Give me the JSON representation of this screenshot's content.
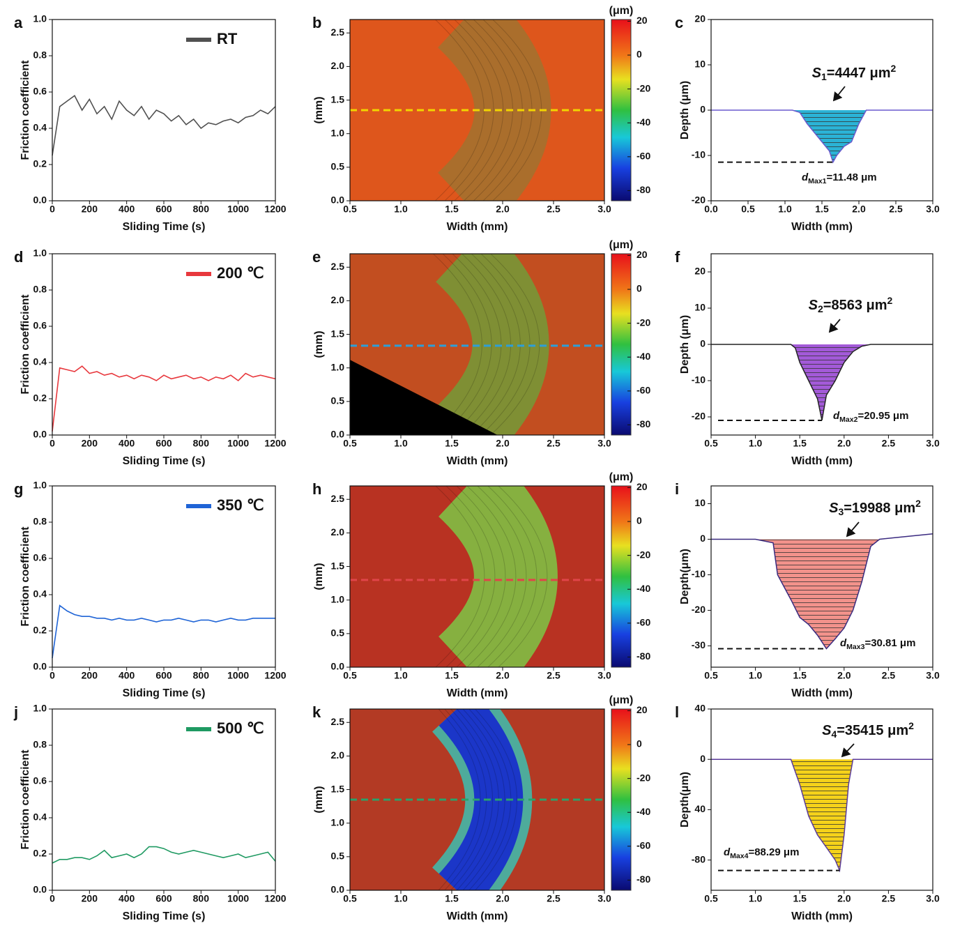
{
  "chart_data": [
    {
      "panel": "a",
      "type": "line",
      "x": [
        0,
        40,
        80,
        120,
        160,
        200,
        240,
        280,
        320,
        360,
        400,
        440,
        480,
        520,
        560,
        600,
        640,
        680,
        720,
        760,
        800,
        840,
        880,
        920,
        960,
        1000,
        1040,
        1080,
        1120,
        1160,
        1200
      ],
      "series": [
        {
          "name": "RT",
          "color": "#505050",
          "values": [
            0.25,
            0.52,
            0.55,
            0.58,
            0.5,
            0.56,
            0.48,
            0.52,
            0.45,
            0.55,
            0.5,
            0.47,
            0.52,
            0.45,
            0.5,
            0.48,
            0.44,
            0.47,
            0.42,
            0.45,
            0.4,
            0.43,
            0.42,
            0.44,
            0.45,
            0.43,
            0.46,
            0.47,
            0.5,
            0.48,
            0.52
          ]
        }
      ],
      "xlabel": "Sliding Time (s)",
      "ylabel": "Friction coefficient",
      "xlim": [
        0,
        1200
      ],
      "ylim": [
        0,
        1
      ],
      "xticks": [
        0,
        200,
        400,
        600,
        800,
        1000,
        1200
      ],
      "yticks": [
        {
          "value": 0,
          "label": "0.0"
        },
        0.2,
        0.4,
        0.6,
        0.8,
        {
          "value": 1,
          "label": "1.0"
        }
      ]
    },
    {
      "panel": "b",
      "type": "map",
      "xlabel": "Width (mm)",
      "ylabel": "(mm)",
      "colorbar_label": "(μm)",
      "xlim": [
        0.5,
        3
      ],
      "ylim": [
        0,
        2.7
      ],
      "xticks": [
        0.5,
        {
          "value": 1,
          "label": "1.0"
        },
        1.5,
        {
          "value": 2,
          "label": "2.0"
        },
        2.5,
        {
          "value": 3,
          "label": "3.0"
        }
      ],
      "yticks": [
        {
          "value": 0,
          "label": "0.0"
        },
        0.5,
        {
          "value": 1,
          "label": "1.0"
        },
        1.5,
        {
          "value": 2,
          "label": "2.0"
        },
        2.5
      ],
      "clim": [
        -86,
        21
      ],
      "cticks": [
        20,
        0,
        -20,
        -40,
        -60,
        -80
      ],
      "section_y": 1.35,
      "section_color": "#f2d500"
    },
    {
      "panel": "c",
      "type": "profile",
      "x": [
        0,
        0.2,
        0.4,
        0.6,
        0.8,
        1.0,
        1.1,
        1.2,
        1.3,
        1.4,
        1.5,
        1.6,
        1.65,
        1.7,
        1.8,
        1.9,
        2.0,
        2.1,
        2.2,
        2.4,
        2.6,
        2.8,
        3.0
      ],
      "values": [
        0,
        0,
        0,
        0,
        0,
        0,
        0,
        -0.5,
        -3,
        -5,
        -7,
        -9,
        -11.48,
        -10,
        -8,
        -7,
        -3,
        0,
        0,
        0,
        0,
        0,
        0
      ],
      "color": "#6a5acd",
      "fill": "#2bb3d6",
      "area_label": [
        "S",
        "1",
        "=4447 μm",
        "2"
      ],
      "depth_label": [
        "d",
        "Max1",
        "=11.48 μm"
      ],
      "xlabel": "Width (mm)",
      "ylabel": "Depth (μm)",
      "xlim": [
        0,
        3
      ],
      "ylim": [
        -20,
        20
      ],
      "xticks": [
        {
          "value": 0,
          "label": "0.0"
        },
        0.5,
        {
          "value": 1,
          "label": "1.0"
        },
        1.5,
        {
          "value": 2,
          "label": "2.0"
        },
        2.5,
        {
          "value": 3,
          "label": "3.0"
        }
      ],
      "yticks": [
        -20,
        -10,
        0,
        10,
        20
      ]
    },
    {
      "panel": "d",
      "type": "line",
      "x": [
        0,
        40,
        80,
        120,
        160,
        200,
        240,
        280,
        320,
        360,
        400,
        440,
        480,
        520,
        560,
        600,
        640,
        680,
        720,
        760,
        800,
        840,
        880,
        920,
        960,
        1000,
        1040,
        1080,
        1120,
        1160,
        1200
      ],
      "series": [
        {
          "name": "200 ℃",
          "color": "#e8383d",
          "values": [
            0.02,
            0.37,
            0.36,
            0.35,
            0.38,
            0.34,
            0.35,
            0.33,
            0.34,
            0.32,
            0.33,
            0.31,
            0.33,
            0.32,
            0.3,
            0.33,
            0.31,
            0.32,
            0.33,
            0.31,
            0.32,
            0.3,
            0.32,
            0.31,
            0.33,
            0.3,
            0.34,
            0.32,
            0.33,
            0.32,
            0.31
          ]
        }
      ],
      "xlabel": "Sliding Time (s)",
      "ylabel": "Friction coefficient",
      "xlim": [
        0,
        1200
      ],
      "ylim": [
        0,
        1
      ],
      "xticks": [
        0,
        200,
        400,
        600,
        800,
        1000,
        1200
      ],
      "yticks": [
        {
          "value": 0,
          "label": "0.0"
        },
        0.2,
        0.4,
        0.6,
        0.8,
        {
          "value": 1,
          "label": "1.0"
        }
      ]
    },
    {
      "panel": "e",
      "type": "map",
      "xlabel": "Width (mm)",
      "ylabel": "(mm)",
      "colorbar_label": "(μm)",
      "xlim": [
        0.5,
        3
      ],
      "ylim": [
        0,
        2.7
      ],
      "xticks": [
        0.5,
        {
          "value": 1,
          "label": "1.0"
        },
        1.5,
        {
          "value": 2,
          "label": "2.0"
        },
        2.5,
        {
          "value": 3,
          "label": "3.0"
        }
      ],
      "yticks": [
        {
          "value": 0,
          "label": "0.0"
        },
        0.5,
        {
          "value": 1,
          "label": "1.0"
        },
        1.5,
        {
          "value": 2,
          "label": "2.0"
        },
        2.5
      ],
      "clim": [
        -86,
        21
      ],
      "cticks": [
        20,
        0,
        -20,
        -40,
        -60,
        -80
      ],
      "section_y": 1.33,
      "section_color": "#2d9fd8"
    },
    {
      "panel": "f",
      "type": "profile",
      "x": [
        0.5,
        0.8,
        1.1,
        1.4,
        1.45,
        1.5,
        1.6,
        1.7,
        1.75,
        1.8,
        1.9,
        2.0,
        2.1,
        2.2,
        2.3,
        2.6,
        3.0
      ],
      "values": [
        0,
        0,
        0,
        0,
        -1,
        -5,
        -10,
        -15,
        -20.95,
        -14,
        -10,
        -5,
        -2,
        -0.5,
        0,
        0,
        0
      ],
      "color": "#222222",
      "fill": "#a35ad8",
      "area_label": [
        "S",
        "2",
        "=8563 μm",
        "2"
      ],
      "depth_label": [
        "d",
        "Max2",
        "=20.95 μm"
      ],
      "xlabel": "Width (mm)",
      "ylabel": "Depth (μm)",
      "xlim": [
        0.5,
        3
      ],
      "ylim": [
        -25,
        25
      ],
      "xticks": [
        0.5,
        {
          "value": 1,
          "label": "1.0"
        },
        1.5,
        {
          "value": 2,
          "label": "2.0"
        },
        2.5,
        {
          "value": 3,
          "label": "3.0"
        }
      ],
      "yticks": [
        -20,
        -10,
        0,
        10,
        20
      ]
    },
    {
      "panel": "g",
      "type": "line",
      "x": [
        0,
        40,
        80,
        120,
        160,
        200,
        240,
        280,
        320,
        360,
        400,
        440,
        480,
        520,
        560,
        600,
        640,
        680,
        720,
        760,
        800,
        840,
        880,
        920,
        960,
        1000,
        1040,
        1080,
        1120,
        1160,
        1200
      ],
      "series": [
        {
          "name": "350 ℃",
          "color": "#1f64d6",
          "values": [
            0.05,
            0.34,
            0.31,
            0.29,
            0.28,
            0.28,
            0.27,
            0.27,
            0.26,
            0.27,
            0.26,
            0.26,
            0.27,
            0.26,
            0.25,
            0.26,
            0.26,
            0.27,
            0.26,
            0.25,
            0.26,
            0.26,
            0.25,
            0.26,
            0.27,
            0.26,
            0.26,
            0.27,
            0.27,
            0.27,
            0.27
          ]
        }
      ],
      "xlabel": "Sliding Time (s)",
      "ylabel": "Friction coefficient",
      "xlim": [
        0,
        1200
      ],
      "ylim": [
        0,
        1
      ],
      "xticks": [
        0,
        200,
        400,
        600,
        800,
        1000,
        1200
      ],
      "yticks": [
        {
          "value": 0,
          "label": "0.0"
        },
        0.2,
        0.4,
        0.6,
        0.8,
        {
          "value": 1,
          "label": "1.0"
        }
      ]
    },
    {
      "panel": "h",
      "type": "map",
      "xlabel": "Width (mm)",
      "ylabel": "(mm)",
      "colorbar_label": "(μm)",
      "xlim": [
        0.5,
        3
      ],
      "ylim": [
        0,
        2.7
      ],
      "xticks": [
        0.5,
        {
          "value": 1,
          "label": "1.0"
        },
        1.5,
        {
          "value": 2,
          "label": "2.0"
        },
        2.5,
        {
          "value": 3,
          "label": "3.0"
        }
      ],
      "yticks": [
        {
          "value": 0,
          "label": "0.0"
        },
        0.5,
        {
          "value": 1,
          "label": "1.0"
        },
        1.5,
        {
          "value": 2,
          "label": "2.0"
        },
        2.5
      ],
      "clim": [
        -86,
        21
      ],
      "cticks": [
        20,
        0,
        -20,
        -40,
        -60,
        -80
      ],
      "section_y": 1.3,
      "section_color": "#e0454a"
    },
    {
      "panel": "i",
      "type": "profile",
      "x": [
        0.5,
        1.0,
        1.2,
        1.25,
        1.4,
        1.5,
        1.6,
        1.7,
        1.8,
        1.9,
        2.0,
        2.1,
        2.2,
        2.3,
        2.4,
        2.6,
        3.0
      ],
      "values": [
        0,
        0,
        -1,
        -10,
        -17,
        -22,
        -24,
        -27,
        -30.81,
        -28,
        -25,
        -20,
        -12,
        -2,
        0,
        0.5,
        1.5
      ],
      "color": "#3a2a80",
      "fill": "#f2928b",
      "area_label": [
        "S",
        "3",
        "=19988 μm",
        "2"
      ],
      "depth_label": [
        "d",
        "Max3",
        "=30.81 μm"
      ],
      "xlabel": "Width (mm)",
      "ylabel": "Depth(μm)",
      "xlim": [
        0.5,
        3
      ],
      "ylim": [
        -36,
        15
      ],
      "xticks": [
        0.5,
        {
          "value": 1,
          "label": "1.0"
        },
        1.5,
        {
          "value": 2,
          "label": "2.0"
        },
        2.5,
        {
          "value": 3,
          "label": "3.0"
        }
      ],
      "yticks": [
        -30,
        -20,
        -10,
        0,
        10
      ]
    },
    {
      "panel": "j",
      "type": "line",
      "x": [
        0,
        40,
        80,
        120,
        160,
        200,
        240,
        280,
        320,
        360,
        400,
        440,
        480,
        520,
        560,
        600,
        640,
        680,
        720,
        760,
        800,
        840,
        880,
        920,
        960,
        1000,
        1040,
        1080,
        1120,
        1160,
        1200
      ],
      "series": [
        {
          "name": "500 ℃",
          "color": "#1f9a62",
          "values": [
            0.15,
            0.17,
            0.17,
            0.18,
            0.18,
            0.17,
            0.19,
            0.22,
            0.18,
            0.19,
            0.2,
            0.18,
            0.2,
            0.24,
            0.24,
            0.23,
            0.21,
            0.2,
            0.21,
            0.22,
            0.21,
            0.2,
            0.19,
            0.18,
            0.19,
            0.2,
            0.18,
            0.19,
            0.2,
            0.21,
            0.16
          ]
        }
      ],
      "xlabel": "Sliding Time (s)",
      "ylabel": "Friction coefficient",
      "xlim": [
        0,
        1200
      ],
      "ylim": [
        0,
        1
      ],
      "xticks": [
        0,
        200,
        400,
        600,
        800,
        1000,
        1200
      ],
      "yticks": [
        {
          "value": 0,
          "label": "0.0"
        },
        0.2,
        0.4,
        0.6,
        0.8,
        {
          "value": 1,
          "label": "1.0"
        }
      ]
    },
    {
      "panel": "k",
      "type": "map",
      "xlabel": "Width (mm)",
      "ylabel": "(mm)",
      "colorbar_label": "(μm)",
      "xlim": [
        0.5,
        3
      ],
      "ylim": [
        0,
        2.7
      ],
      "xticks": [
        0.5,
        {
          "value": 1,
          "label": "1.0"
        },
        1.5,
        {
          "value": 2,
          "label": "2.0"
        },
        2.5,
        {
          "value": 3,
          "label": "3.0"
        }
      ],
      "yticks": [
        {
          "value": 0,
          "label": "0.0"
        },
        0.5,
        {
          "value": 1,
          "label": "1.0"
        },
        1.5,
        {
          "value": 2,
          "label": "2.0"
        },
        2.5
      ],
      "clim": [
        -86,
        21
      ],
      "cticks": [
        20,
        0,
        -20,
        -40,
        -60,
        -80
      ],
      "section_y": 1.35,
      "section_color": "#2aa36a"
    },
    {
      "panel": "l",
      "type": "profile",
      "x": [
        0.5,
        1.0,
        1.4,
        1.5,
        1.6,
        1.7,
        1.8,
        1.9,
        1.95,
        2.0,
        2.05,
        2.1,
        2.5,
        3.0
      ],
      "values": [
        0,
        0,
        0,
        -20,
        -45,
        -60,
        -70,
        -80,
        -88.29,
        -60,
        -20,
        0,
        0,
        0
      ],
      "color": "#5a3a9a",
      "fill": "#f5d21a",
      "area_label": [
        "S",
        "4",
        "=35415 μm",
        "2"
      ],
      "depth_label": [
        "d",
        "Max4",
        "=88.29 μm"
      ],
      "xlabel": "Width (mm)",
      "ylabel": "Depth(μm)",
      "xlim": [
        0.5,
        3
      ],
      "ylim": [
        -104,
        40
      ],
      "xticks": [
        0.5,
        {
          "value": 1,
          "label": "1.0"
        },
        1.5,
        {
          "value": 2,
          "label": "2.0"
        },
        2.5,
        {
          "value": 3,
          "label": "3.0"
        }
      ],
      "yticks": [
        -80,
        {
          "value": -40,
          "label": "40"
        },
        0,
        40
      ]
    }
  ]
}
